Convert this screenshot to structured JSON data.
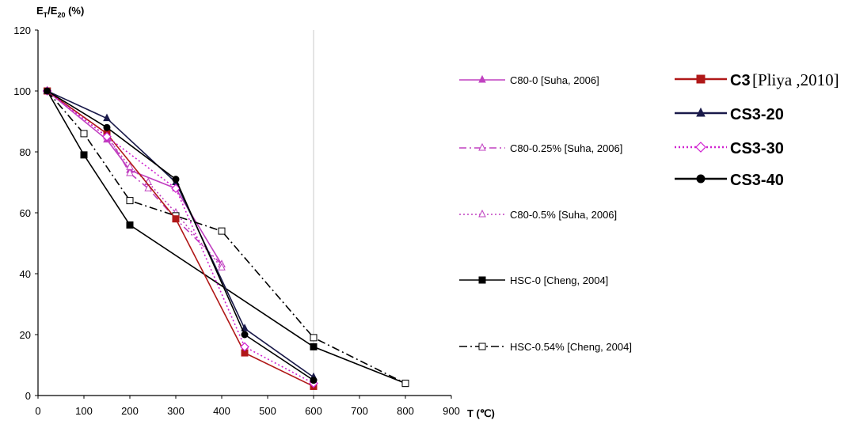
{
  "chart_data": {
    "type": "line",
    "ylabel_main": "E",
    "ylabel_sub1": "T",
    "ylabel_mid": "/E",
    "ylabel_sub2": "20",
    "ylabel_unit": " (%)",
    "xlabel": "T (℃)",
    "xlim": [
      0,
      900
    ],
    "ylim": [
      0,
      120
    ],
    "xticks": [
      "0",
      "100",
      "200",
      "300",
      "400",
      "500",
      "600",
      "700",
      "800",
      "900"
    ],
    "yticks": [
      "0",
      "20",
      "40",
      "60",
      "80",
      "100",
      "120"
    ],
    "vline_x": 600,
    "series": [
      {
        "name": "C80-0 [Suha, 2006]",
        "color": "#c040c0",
        "dash": "",
        "marker": "tri-filled",
        "x": [
          20,
          150,
          200,
          300,
          400
        ],
        "y": [
          100,
          84,
          74,
          68,
          43
        ]
      },
      {
        "name": "C80-0.25% [Suha, 2006]",
        "color": "#c040c0",
        "dash": "9 4 2 4",
        "marker": "tri-open",
        "x": [
          20,
          150,
          200,
          240,
          300,
          400
        ],
        "y": [
          100,
          86,
          73,
          68,
          58,
          43
        ]
      },
      {
        "name": "C80-0.5% [Suha, 2006]",
        "color": "#c040c0",
        "dash": "2 3",
        "marker": "tri-open",
        "x": [
          20,
          150,
          200,
          240,
          300,
          400
        ],
        "y": [
          100,
          85,
          75,
          70,
          60,
          42
        ]
      },
      {
        "name": "HSC-0 [Cheng, 2004]",
        "color": "#000000",
        "dash": "",
        "marker": "square-filled",
        "x": [
          20,
          100,
          200,
          600,
          800
        ],
        "y": [
          100,
          79,
          56,
          16,
          4
        ]
      },
      {
        "name": "HSC-0.54% [Cheng, 2004]",
        "color": "#000000",
        "dash": "10 4 2 4",
        "marker": "square-open",
        "x": [
          20,
          100,
          200,
          300,
          400,
          600,
          800
        ],
        "y": [
          100,
          86,
          64,
          59,
          54,
          19,
          4
        ]
      },
      {
        "name": "C3",
        "color": "#b01818",
        "dash": "",
        "marker": "square-red",
        "x": [
          20,
          150,
          300,
          450,
          600
        ],
        "y": [
          100,
          86,
          58,
          14,
          3
        ]
      },
      {
        "name": "CS3-20",
        "color": "#1a1a4a",
        "dash": "",
        "marker": "tri-dark",
        "x": [
          20,
          150,
          300,
          450,
          600
        ],
        "y": [
          100,
          91,
          70,
          22,
          6
        ]
      },
      {
        "name": "CS3-30",
        "color": "#d020d0",
        "dash": "2 3",
        "marker": "diamond-open",
        "x": [
          20,
          150,
          300,
          450,
          600
        ],
        "y": [
          100,
          85,
          68,
          16,
          4
        ]
      },
      {
        "name": "CS3-40",
        "color": "#000000",
        "dash": "",
        "marker": "circle-filled",
        "x": [
          20,
          150,
          300,
          450,
          600
        ],
        "y": [
          100,
          88,
          71,
          20,
          5
        ]
      }
    ],
    "legend_left": [
      "C80-0 [Suha, 2006]",
      "C80-0.25% [Suha, 2006]",
      "C80-0.5% [Suha, 2006]",
      "HSC-0 [Cheng, 2004]",
      "HSC-0.54% [Cheng, 2004]"
    ],
    "legend_right": [
      "C3",
      "CS3-20",
      "CS3-30",
      "CS3-40"
    ],
    "legend_c3_ref": "[Pliya ,2010]"
  }
}
